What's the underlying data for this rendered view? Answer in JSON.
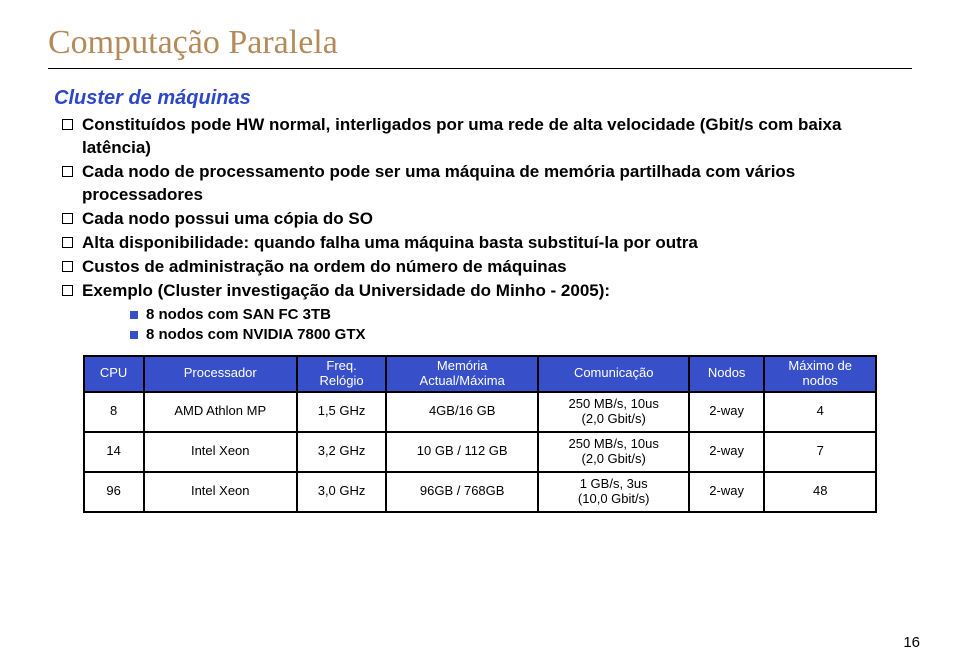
{
  "title": "Computação Paralela",
  "subtitle": "Cluster de máquinas",
  "bullets": [
    {
      "text": "Constituídos pode HW normal, interligados por uma rede de alta velocidade (Gbit/s com baixa latência)"
    },
    {
      "text": "Cada nodo de processamento pode ser uma máquina de memória partilhada com vários processadores"
    },
    {
      "text": "Cada nodo possui uma cópia do SO"
    },
    {
      "text": "Alta disponibilidade: quando falha uma máquina basta substituí-la por outra"
    },
    {
      "text": "Custos de administração na ordem do número de máquinas"
    },
    {
      "text": "Exemplo (Cluster investigação da Universidade do Minho - 2005):",
      "sub": [
        "8 nodos com SAN FC 3TB",
        "8 nodos com NVIDIA 7800 GTX"
      ]
    }
  ],
  "table": {
    "header_bg": "#374fc9",
    "header_fg": "#ffffff",
    "border_color": "#000000",
    "columns": [
      {
        "label": "CPU"
      },
      {
        "label": "Processador"
      },
      {
        "label_line1": "Freq.",
        "label_line2": "Relógio"
      },
      {
        "label_line1": "Memória",
        "label_line2": "Actual/Máxima"
      },
      {
        "label": "Comunicação"
      },
      {
        "label": "Nodos"
      },
      {
        "label_line1": "Máximo de",
        "label_line2": "nodos"
      }
    ],
    "rows": [
      {
        "cpu": "8",
        "proc": "AMD Athlon MP",
        "freq": "1,5 GHz",
        "mem": "4GB/16 GB",
        "comm_line1": "250 MB/s, 10us",
        "comm_line2": "(2,0 Gbit/s)",
        "nodos": "2-way",
        "max": "4"
      },
      {
        "cpu": "14",
        "proc": "Intel Xeon",
        "freq": "3,2 GHz",
        "mem": "10 GB / 112 GB",
        "comm_line1": "250 MB/s, 10us",
        "comm_line2": "(2,0 Gbit/s)",
        "nodos": "2-way",
        "max": "7"
      },
      {
        "cpu": "96",
        "proc": "Intel Xeon",
        "freq": "3,0 GHz",
        "mem": "96GB / 768GB",
        "comm_line1": "1 GB/s, 3us",
        "comm_line2": "(10,0 Gbit/s)",
        "nodos": "2-way",
        "max": "48"
      }
    ]
  },
  "page_number": "16",
  "colors": {
    "title": "#b48a5a",
    "subtitle": "#2e47c9",
    "sub_bullet": "#374fc9",
    "text": "#000000",
    "background": "#ffffff"
  },
  "fonts": {
    "title_family": "Georgia, Times New Roman, serif",
    "body_family": "Verdana, Arial, sans-serif",
    "title_size_pt": 26,
    "subtitle_size_pt": 15,
    "bullet_size_pt": 13,
    "sub_bullet_size_pt": 11,
    "table_size_pt": 10
  }
}
